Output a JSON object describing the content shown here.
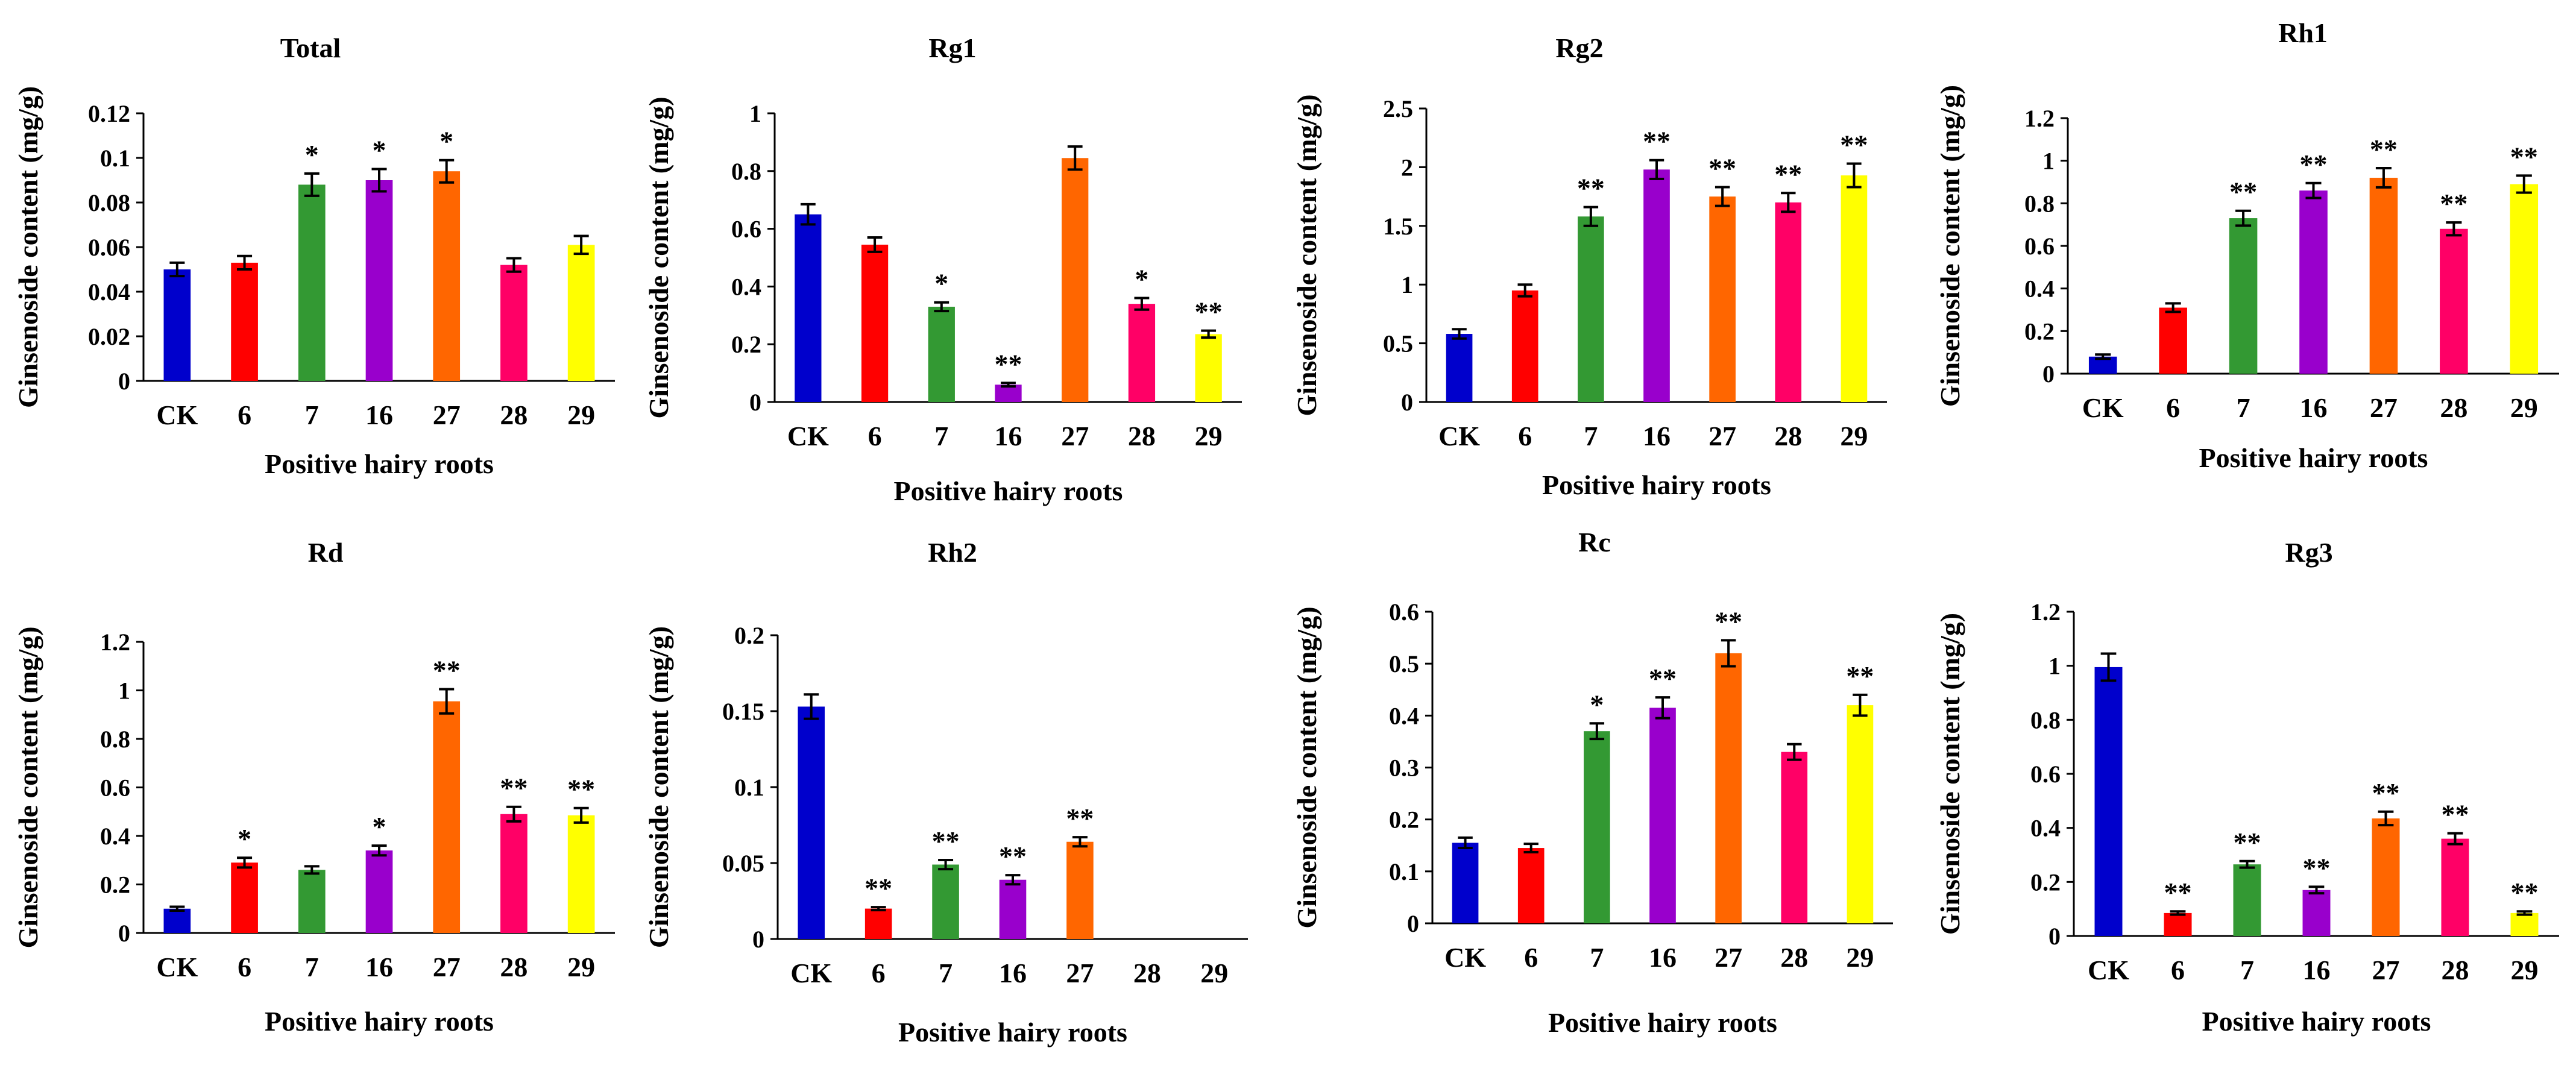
{
  "figure": {
    "xlabel": "Positive hairy roots",
    "ylabel": "Ginsenoside content (mg/g)"
  },
  "chart_data": [
    {
      "type": "bar",
      "title": "Total",
      "categories": [
        "CK",
        "6",
        "7",
        "16",
        "27",
        "28",
        "29"
      ],
      "values": [
        0.05,
        0.053,
        0.088,
        0.09,
        0.094,
        0.052,
        0.061
      ],
      "errors": [
        0.003,
        0.003,
        0.005,
        0.005,
        0.005,
        0.003,
        0.004
      ],
      "significance": [
        "",
        "",
        "*",
        "*",
        "*",
        "",
        ""
      ],
      "colors": [
        "#0000cc",
        "#ff0000",
        "#339933",
        "#9900cc",
        "#ff6600",
        "#ff0066",
        "#ffff00"
      ],
      "xlabel": "Positive hairy roots",
      "ylabel": "Ginsenoside content (mg/g)",
      "ylim": [
        0,
        0.12
      ],
      "yticks": [
        0,
        0.02,
        0.04,
        0.06,
        0.08,
        0.1,
        0.12
      ],
      "ytick_labels": [
        "0",
        "0.02",
        "0.04",
        "0.06",
        "0.08",
        "0.1",
        "0.12"
      ]
    },
    {
      "type": "bar",
      "title": "Rg1",
      "categories": [
        "CK",
        "6",
        "7",
        "16",
        "27",
        "28",
        "29"
      ],
      "values": [
        0.65,
        0.545,
        0.33,
        0.06,
        0.845,
        0.34,
        0.235
      ],
      "errors": [
        0.035,
        0.025,
        0.015,
        0.006,
        0.04,
        0.02,
        0.012
      ],
      "significance": [
        "",
        "",
        "*",
        "**",
        "",
        "*",
        "**"
      ],
      "colors": [
        "#0000cc",
        "#ff0000",
        "#339933",
        "#9900cc",
        "#ff6600",
        "#ff0066",
        "#ffff00"
      ],
      "xlabel": "Positive hairy roots",
      "ylabel": "Ginsenoside content (mg/g)",
      "ylim": [
        0,
        1
      ],
      "yticks": [
        0,
        0.2,
        0.4,
        0.6,
        0.8,
        1
      ],
      "ytick_labels": [
        "0",
        "0.2",
        "0.4",
        "0.6",
        "0.8",
        "1"
      ]
    },
    {
      "type": "bar",
      "title": "Rg2",
      "categories": [
        "CK",
        "6",
        "7",
        "16",
        "27",
        "28",
        "29"
      ],
      "values": [
        0.58,
        0.95,
        1.58,
        1.98,
        1.75,
        1.7,
        1.93
      ],
      "errors": [
        0.04,
        0.05,
        0.08,
        0.08,
        0.08,
        0.08,
        0.1
      ],
      "significance": [
        "",
        "",
        "**",
        "**",
        "**",
        "**",
        "**"
      ],
      "colors": [
        "#0000cc",
        "#ff0000",
        "#339933",
        "#9900cc",
        "#ff6600",
        "#ff0066",
        "#ffff00"
      ],
      "xlabel": "Positive hairy roots",
      "ylabel": "Ginsenoside content (mg/g)",
      "ylim": [
        0,
        2.5
      ],
      "yticks": [
        0,
        0.5,
        1,
        1.5,
        2,
        2.5
      ],
      "ytick_labels": [
        "0",
        "0.5",
        "1",
        "1.5",
        "2",
        "2.5"
      ]
    },
    {
      "type": "bar",
      "title": "Rh1",
      "categories": [
        "CK",
        "6",
        "7",
        "16",
        "27",
        "28",
        "29"
      ],
      "values": [
        0.08,
        0.31,
        0.73,
        0.86,
        0.92,
        0.68,
        0.89
      ],
      "errors": [
        0.01,
        0.02,
        0.035,
        0.035,
        0.045,
        0.03,
        0.04
      ],
      "significance": [
        "",
        "",
        "**",
        "**",
        "**",
        "**",
        "**"
      ],
      "colors": [
        "#0000cc",
        "#ff0000",
        "#339933",
        "#9900cc",
        "#ff6600",
        "#ff0066",
        "#ffff00"
      ],
      "xlabel": "Positive hairy roots",
      "ylabel": "Ginsenoside content (mg/g)",
      "ylim": [
        0,
        1.2
      ],
      "yticks": [
        0,
        0.2,
        0.4,
        0.6,
        0.8,
        1,
        1.2
      ],
      "ytick_labels": [
        "0",
        "0.2",
        "0.4",
        "0.6",
        "0.8",
        "1",
        "1.2"
      ]
    },
    {
      "type": "bar",
      "title": "Rd",
      "categories": [
        "CK",
        "6",
        "7",
        "16",
        "27",
        "28",
        "29"
      ],
      "values": [
        0.1,
        0.29,
        0.26,
        0.34,
        0.955,
        0.49,
        0.485
      ],
      "errors": [
        0.008,
        0.02,
        0.015,
        0.02,
        0.05,
        0.03,
        0.03
      ],
      "significance": [
        "",
        "*",
        "",
        "*",
        "**",
        "**",
        "**"
      ],
      "colors": [
        "#0000cc",
        "#ff0000",
        "#339933",
        "#9900cc",
        "#ff6600",
        "#ff0066",
        "#ffff00"
      ],
      "xlabel": "Positive hairy roots",
      "ylabel": "Ginsenoside content (mg/g)",
      "ylim": [
        0,
        1.2
      ],
      "yticks": [
        0,
        0.2,
        0.4,
        0.6,
        0.8,
        1,
        1.2
      ],
      "ytick_labels": [
        "0",
        "0.2",
        "0.4",
        "0.6",
        "0.8",
        "1",
        "1.2"
      ]
    },
    {
      "type": "bar",
      "title": "Rh2",
      "categories": [
        "CK",
        "6",
        "7",
        "16",
        "27",
        "28",
        "29"
      ],
      "values": [
        0.153,
        0.02,
        0.049,
        0.039,
        0.064,
        0,
        0
      ],
      "errors": [
        0.008,
        0.001,
        0.003,
        0.003,
        0.003,
        0,
        0
      ],
      "significance": [
        "",
        "**",
        "**",
        "**",
        "**",
        "",
        ""
      ],
      "colors": [
        "#0000cc",
        "#ff0000",
        "#339933",
        "#9900cc",
        "#ff6600",
        "#ff0066",
        "#ffff00"
      ],
      "xlabel": "Positive hairy roots",
      "ylabel": "Ginsenoside content (mg/g)",
      "ylim": [
        0,
        0.2
      ],
      "yticks": [
        0,
        0.05,
        0.1,
        0.15,
        0.2
      ],
      "ytick_labels": [
        "0",
        "0.05",
        "0.1",
        "0.15",
        "0.2"
      ]
    },
    {
      "type": "bar",
      "title": "Rc",
      "categories": [
        "CK",
        "6",
        "7",
        "16",
        "27",
        "28",
        "29"
      ],
      "values": [
        0.155,
        0.145,
        0.37,
        0.415,
        0.52,
        0.33,
        0.42
      ],
      "errors": [
        0.01,
        0.008,
        0.015,
        0.02,
        0.025,
        0.015,
        0.02
      ],
      "significance": [
        "",
        "",
        "*",
        "**",
        "**",
        "",
        "**"
      ],
      "colors": [
        "#0000cc",
        "#ff0000",
        "#339933",
        "#9900cc",
        "#ff6600",
        "#ff0066",
        "#ffff00"
      ],
      "xlabel": "Positive hairy roots",
      "ylabel": "Ginsenoside content (mg/g)",
      "ylim": [
        0,
        0.6
      ],
      "yticks": [
        0,
        0.1,
        0.2,
        0.3,
        0.4,
        0.5,
        0.6
      ],
      "ytick_labels": [
        "0",
        "0.1",
        "0.2",
        "0.3",
        "0.4",
        "0.5",
        "0.6"
      ]
    },
    {
      "type": "bar",
      "title": "Rg3",
      "categories": [
        "CK",
        "6",
        "7",
        "16",
        "27",
        "28",
        "29"
      ],
      "values": [
        0.995,
        0.085,
        0.265,
        0.17,
        0.435,
        0.36,
        0.085
      ],
      "errors": [
        0.05,
        0.006,
        0.012,
        0.012,
        0.025,
        0.02,
        0.006
      ],
      "significance": [
        "",
        "**",
        "**",
        "**",
        "**",
        "**",
        "**"
      ],
      "colors": [
        "#0000cc",
        "#ff0000",
        "#339933",
        "#9900cc",
        "#ff6600",
        "#ff0066",
        "#ffff00"
      ],
      "xlabel": "Positive hairy roots",
      "ylabel": "Ginsenoside content (mg/g)",
      "ylim": [
        0,
        1.2
      ],
      "yticks": [
        0,
        0.2,
        0.4,
        0.6,
        0.8,
        1,
        1.2
      ],
      "ytick_labels": [
        "0",
        "0.2",
        "0.4",
        "0.6",
        "0.8",
        "1",
        "1.2"
      ]
    }
  ]
}
